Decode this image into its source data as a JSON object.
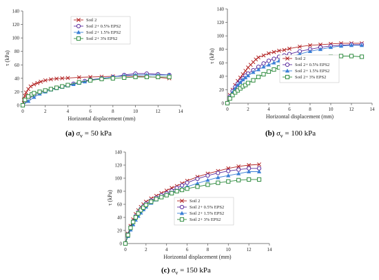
{
  "colors": {
    "soil2": "#b22222",
    "eps05": "#5b2d9e",
    "eps15": "#3a7fd6",
    "eps3": "#2e8b3e"
  },
  "chart_data": [
    {
      "type": "line",
      "id": "a",
      "xlabel": "Horizontal displacement (mm)",
      "ylabel": "τ (kPa)",
      "xlim": [
        0,
        14
      ],
      "ylim": [
        0,
        140
      ],
      "xticks": [
        "0",
        "2",
        "4",
        "6",
        "8",
        "10",
        "12",
        "14"
      ],
      "yticks": [
        "0",
        "20",
        "40",
        "60",
        "80",
        "100",
        "120",
        "140"
      ],
      "legend_position": "top-center",
      "caption": {
        "label": "(a)",
        "text": " σ",
        "sub": "v",
        "rest": " = 50 kPa"
      },
      "series": [
        {
          "name": "Soil 2",
          "marker": "x",
          "color": "soil2",
          "x": [
            0,
            0.1,
            0.2,
            0.3,
            0.5,
            0.7,
            1,
            1.3,
            1.6,
            2,
            2.5,
            3,
            3.5,
            4,
            5,
            6,
            7,
            8,
            9,
            10,
            11,
            12,
            13
          ],
          "y": [
            0,
            8,
            14,
            19,
            24,
            28,
            31,
            33,
            35,
            37,
            38.5,
            39.5,
            40,
            40.5,
            41.5,
            42,
            42.5,
            43,
            43,
            43,
            42.5,
            41.5,
            40
          ]
        },
        {
          "name": "Soil 2+ 0.5% EPS2",
          "marker": "o",
          "color": "eps05",
          "x": [
            0,
            0.5,
            1,
            1.5,
            2,
            2.5,
            3,
            3.5,
            4,
            4.5,
            5,
            5.5,
            6,
            7,
            8,
            9,
            10,
            11,
            12,
            13
          ],
          "y": [
            0,
            9,
            15,
            19,
            22,
            24,
            26,
            28,
            30,
            32,
            34,
            36,
            38,
            40,
            42,
            45,
            47,
            47,
            46,
            45
          ]
        },
        {
          "name": "Soil 2+ 1.5% EPS2",
          "marker": "^",
          "color": "eps15",
          "x": [
            0,
            0.5,
            1,
            1.5,
            2,
            2.5,
            3,
            3.5,
            4,
            4.5,
            5,
            5.5,
            6,
            7,
            8,
            9,
            10,
            11,
            12,
            13
          ],
          "y": [
            0,
            6,
            12,
            17,
            20,
            23,
            25,
            27,
            29,
            31,
            33,
            35,
            37,
            40,
            42,
            44,
            45,
            45,
            45,
            45
          ]
        },
        {
          "name": "Soil 2+ 3% EPS2",
          "marker": "s",
          "color": "eps3",
          "x": [
            0,
            0.2,
            0.5,
            0.8,
            1,
            1.5,
            2,
            2.5,
            3,
            3.5,
            4,
            5,
            6,
            7,
            8,
            9,
            10,
            11,
            12,
            13
          ],
          "y": [
            0,
            8,
            13,
            16,
            18,
            20,
            22,
            24,
            26,
            28,
            30,
            34,
            37,
            39,
            40,
            41,
            42,
            42,
            42,
            42
          ]
        }
      ]
    },
    {
      "type": "line",
      "id": "b",
      "xlabel": "Horizontal displacement (mm)",
      "ylabel": "τ (kPa)",
      "xlim": [
        0,
        14
      ],
      "ylim": [
        0,
        140
      ],
      "xticks": [
        "0",
        "2",
        "4",
        "6",
        "8",
        "10",
        "12",
        "14"
      ],
      "yticks": [
        "0",
        "20",
        "40",
        "60",
        "80",
        "100",
        "120",
        "140"
      ],
      "legend_position": "bottom-right",
      "caption": {
        "label": "(b)",
        "text": " σ",
        "sub": "v",
        "rest": " = 100 kPa"
      },
      "series": [
        {
          "name": "Soil 2",
          "marker": "x",
          "color": "soil2",
          "x": [
            0,
            0.25,
            0.5,
            0.75,
            1,
            1.25,
            1.5,
            1.75,
            2,
            2.25,
            2.5,
            2.75,
            3,
            3.5,
            4,
            4.5,
            5,
            5.5,
            6,
            7,
            8,
            9,
            10,
            11,
            12,
            13
          ],
          "y": [
            0,
            12,
            20,
            27,
            33,
            38,
            43,
            48,
            53,
            57,
            61,
            65,
            68,
            71,
            74,
            76,
            78,
            79,
            81,
            84,
            86,
            87,
            88,
            89,
            89,
            89
          ]
        },
        {
          "name": "Soil 2+ 0.5% EPS2",
          "marker": "o",
          "color": "eps05",
          "x": [
            0,
            0.25,
            0.5,
            0.75,
            1,
            1.25,
            1.5,
            1.75,
            2,
            2.5,
            3,
            3.5,
            4,
            4.5,
            5,
            5.5,
            6,
            7,
            8,
            9,
            10,
            11,
            12,
            13
          ],
          "y": [
            0,
            10,
            18,
            24,
            29,
            33,
            37,
            41,
            44,
            49,
            54,
            59,
            63,
            66,
            69,
            71,
            73,
            77,
            80,
            83,
            85,
            86,
            87,
            87
          ]
        },
        {
          "name": "Soil 2+ 1.5% EPS2",
          "marker": "^",
          "color": "eps15",
          "x": [
            0,
            0.25,
            0.5,
            0.75,
            1,
            1.25,
            1.5,
            1.75,
            2,
            2.5,
            3,
            3.5,
            4,
            4.5,
            5,
            5.5,
            6,
            7,
            8,
            9,
            10,
            11,
            12,
            13
          ],
          "y": [
            0,
            9,
            16,
            22,
            27,
            31,
            35,
            38,
            41,
            46,
            50,
            54,
            57,
            60,
            63,
            66,
            68,
            73,
            77,
            80,
            83,
            85,
            86,
            86
          ]
        },
        {
          "name": "Soil 2+ 3% EPS2",
          "marker": "s",
          "color": "eps3",
          "x": [
            0,
            0.25,
            0.5,
            0.75,
            1,
            1.25,
            1.5,
            1.75,
            2,
            2.5,
            3,
            3.5,
            4,
            4.5,
            5,
            5.5,
            6,
            7,
            8,
            9,
            10,
            11,
            12,
            13
          ],
          "y": [
            0,
            7,
            12,
            16,
            19,
            22,
            25,
            27,
            30,
            34,
            39,
            43,
            47,
            50,
            53,
            55,
            57,
            61,
            64,
            67,
            69,
            70,
            70,
            69
          ]
        }
      ]
    },
    {
      "type": "line",
      "id": "c",
      "xlabel": "Horizontal displacement (mm)",
      "ylabel": "τ (kPa)",
      "xlim": [
        0,
        14
      ],
      "ylim": [
        0,
        140
      ],
      "xticks": [
        "0",
        "2",
        "4",
        "6",
        "8",
        "10",
        "12",
        "14"
      ],
      "yticks": [
        "0",
        "20",
        "40",
        "60",
        "80",
        "100",
        "120",
        "140"
      ],
      "legend_position": "bottom-right",
      "caption": {
        "label": "(c)",
        "text": " σ",
        "sub": "v",
        "rest": " = 150 kPa"
      },
      "series": [
        {
          "name": "Soil 2",
          "marker": "x",
          "color": "soil2",
          "x": [
            0,
            0.25,
            0.5,
            0.75,
            1,
            1.25,
            1.5,
            1.75,
            2,
            2.5,
            3,
            3.5,
            4,
            4.5,
            5,
            5.5,
            6,
            7,
            8,
            9,
            10,
            11,
            12,
            13
          ],
          "y": [
            0,
            15,
            27,
            37,
            45,
            51,
            56,
            60,
            64,
            69,
            73,
            77,
            81,
            85,
            88,
            92,
            96,
            102,
            107,
            111,
            115,
            118,
            120,
            121
          ]
        },
        {
          "name": "Soil 2+ 0.5% EPS2",
          "marker": "o",
          "color": "eps05",
          "x": [
            0,
            0.25,
            0.5,
            0.75,
            1,
            1.25,
            1.5,
            1.75,
            2,
            2.5,
            3,
            3.5,
            4,
            4.5,
            5,
            5.5,
            6,
            7,
            8,
            9,
            10,
            11,
            12,
            13
          ],
          "y": [
            0,
            14,
            25,
            34,
            42,
            48,
            53,
            57,
            61,
            66,
            70,
            74,
            77,
            81,
            85,
            89,
            93,
            99,
            104,
            108,
            111,
            113,
            115,
            115
          ]
        },
        {
          "name": "Soil 2+ 1.5% EPS2",
          "marker": "^",
          "color": "eps15",
          "x": [
            0,
            0.25,
            0.5,
            0.75,
            1,
            1.25,
            1.5,
            1.75,
            2,
            2.5,
            3,
            3.5,
            4,
            4.5,
            5,
            5.5,
            6,
            7,
            8,
            9,
            10,
            11,
            12,
            13
          ],
          "y": [
            0,
            11,
            21,
            29,
            36,
            42,
            47,
            52,
            56,
            62,
            67,
            71,
            75,
            78,
            81,
            84,
            87,
            92,
            97,
            101,
            104,
            107,
            110,
            110
          ]
        },
        {
          "name": "Soil 2+ 3% EPS2",
          "marker": "s",
          "color": "eps3",
          "x": [
            0,
            0.25,
            0.5,
            0.75,
            1,
            1.25,
            1.5,
            1.75,
            2,
            2.5,
            3,
            3.5,
            4,
            4.5,
            5,
            5.5,
            6,
            7,
            8,
            9,
            10,
            11,
            12,
            13
          ],
          "y": [
            0,
            13,
            24,
            33,
            40,
            46,
            51,
            55,
            59,
            64,
            68,
            71,
            74,
            77,
            80,
            82,
            84,
            87,
            90,
            93,
            95,
            97,
            98,
            98
          ]
        }
      ]
    }
  ]
}
